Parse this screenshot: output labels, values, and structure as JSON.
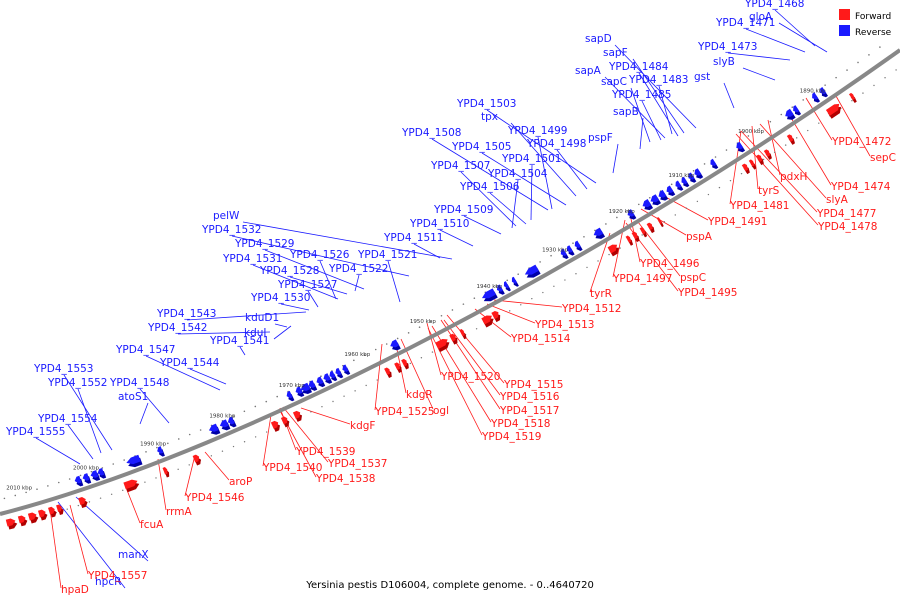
{
  "colors": {
    "forward": "#ff1a1a",
    "forward_dark": "#b00000",
    "reverse": "#1a1aff",
    "reverse_dark": "#0000a8",
    "backbone": "#888888"
  },
  "legend": {
    "forward_label": "Forward",
    "reverse_label": "Reverse"
  },
  "caption": "Yersinia pestis D106004, complete genome. - 0..4640720",
  "scale_ticks": [
    "2010 kbp",
    "2000 kbp",
    "1990 kbp",
    "1980 kbp",
    "1970 kbp",
    "1960 kbp",
    "1950 kbp",
    "1940 kbp",
    "1930 kbp",
    "1920 kbp",
    "1910 kbp",
    "1900 kbp",
    "1890 kbp"
  ],
  "reverse_labels": [
    "YPD4_1468",
    "gloA",
    "YPD4_1471",
    "YPD4_1473",
    "slyB",
    "gst",
    "sapD",
    "sapF",
    "YPD4_1484",
    "sapA",
    "sapC",
    "YPD4_1483",
    "YPD4_1485",
    "sapB",
    "YPD4_1503",
    "tpx",
    "YPD4_1499",
    "YPD4_1508",
    "YPD4_1505",
    "YPD4_1498",
    "pspF",
    "YPD4_1501",
    "YPD4_1507",
    "YPD4_1504",
    "YPD4_1506",
    "YPD4_1509",
    "pelW",
    "YPD4_1510",
    "YPD4_1532",
    "YPD4_1511",
    "YPD4_1529",
    "YPD4_1521",
    "YPD4_1531",
    "YPD4_1526",
    "YPD4_1522",
    "YPD4_1528",
    "YPD4_1527",
    "YPD4_1530",
    "YPD4_1543",
    "kduD1",
    "YPD4_1542",
    "kduI",
    "YPD4_1541",
    "YPD4_1547",
    "YPD4_1544",
    "YPD4_1553",
    "YPD4_1552",
    "YPD4_1548",
    "atoS1",
    "YPD4_1554",
    "YPD4_1555",
    "manX",
    "hpcR"
  ],
  "forward_labels": [
    "YPD4_1472",
    "sepC",
    "YPD4_1474",
    "pdxH",
    "slyA",
    "tyrS",
    "YPD4_1477",
    "YPD4_1481",
    "YPD4_1478",
    "YPD4_1491",
    "pspA",
    "YPD4_1496",
    "tyrR",
    "YPD4_1497",
    "pspC",
    "YPD4_1495",
    "YPD4_1512",
    "YPD4_1513",
    "YPD4_1514",
    "YPD4_1520",
    "YPD4_1515",
    "kdgR",
    "YPD4_1516",
    "YPD4_1525",
    "ogl",
    "YPD4_1517",
    "kdgF",
    "YPD4_1518",
    "YPD4_1519",
    "YPD4_1539",
    "YPD4_1537",
    "YPD4_1540",
    "YPD4_1538",
    "aroP",
    "YPD4_1546",
    "rrmA",
    "fcuA",
    "YPD4_1557",
    "hpaD"
  ]
}
